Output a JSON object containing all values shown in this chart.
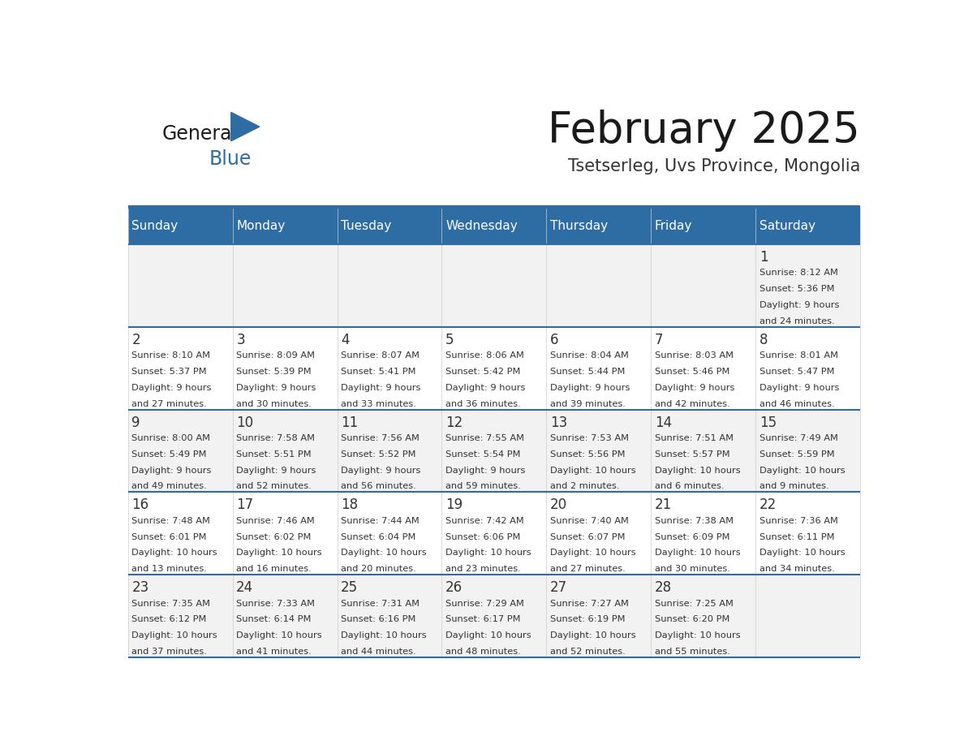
{
  "title": "February 2025",
  "subtitle": "Tsetserleg, Uvs Province, Mongolia",
  "days_of_week": [
    "Sunday",
    "Monday",
    "Tuesday",
    "Wednesday",
    "Thursday",
    "Friday",
    "Saturday"
  ],
  "header_bg": "#2e6da4",
  "header_text": "#ffffff",
  "cell_bg_light": "#f2f2f2",
  "cell_bg_white": "#ffffff",
  "line_color": "#2e6da4",
  "text_color": "#333333",
  "title_color": "#1a1a1a",
  "subtitle_color": "#333333",
  "logo_general_color": "#1a1a1a",
  "logo_blue_color": "#2e6da4",
  "days": [
    {
      "day": 1,
      "col": 6,
      "row": 0,
      "sunrise": "8:12 AM",
      "sunset": "5:36 PM",
      "daylight_hours": 9,
      "daylight_minutes": 24
    },
    {
      "day": 2,
      "col": 0,
      "row": 1,
      "sunrise": "8:10 AM",
      "sunset": "5:37 PM",
      "daylight_hours": 9,
      "daylight_minutes": 27
    },
    {
      "day": 3,
      "col": 1,
      "row": 1,
      "sunrise": "8:09 AM",
      "sunset": "5:39 PM",
      "daylight_hours": 9,
      "daylight_minutes": 30
    },
    {
      "day": 4,
      "col": 2,
      "row": 1,
      "sunrise": "8:07 AM",
      "sunset": "5:41 PM",
      "daylight_hours": 9,
      "daylight_minutes": 33
    },
    {
      "day": 5,
      "col": 3,
      "row": 1,
      "sunrise": "8:06 AM",
      "sunset": "5:42 PM",
      "daylight_hours": 9,
      "daylight_minutes": 36
    },
    {
      "day": 6,
      "col": 4,
      "row": 1,
      "sunrise": "8:04 AM",
      "sunset": "5:44 PM",
      "daylight_hours": 9,
      "daylight_minutes": 39
    },
    {
      "day": 7,
      "col": 5,
      "row": 1,
      "sunrise": "8:03 AM",
      "sunset": "5:46 PM",
      "daylight_hours": 9,
      "daylight_minutes": 42
    },
    {
      "day": 8,
      "col": 6,
      "row": 1,
      "sunrise": "8:01 AM",
      "sunset": "5:47 PM",
      "daylight_hours": 9,
      "daylight_minutes": 46
    },
    {
      "day": 9,
      "col": 0,
      "row": 2,
      "sunrise": "8:00 AM",
      "sunset": "5:49 PM",
      "daylight_hours": 9,
      "daylight_minutes": 49
    },
    {
      "day": 10,
      "col": 1,
      "row": 2,
      "sunrise": "7:58 AM",
      "sunset": "5:51 PM",
      "daylight_hours": 9,
      "daylight_minutes": 52
    },
    {
      "day": 11,
      "col": 2,
      "row": 2,
      "sunrise": "7:56 AM",
      "sunset": "5:52 PM",
      "daylight_hours": 9,
      "daylight_minutes": 56
    },
    {
      "day": 12,
      "col": 3,
      "row": 2,
      "sunrise": "7:55 AM",
      "sunset": "5:54 PM",
      "daylight_hours": 9,
      "daylight_minutes": 59
    },
    {
      "day": 13,
      "col": 4,
      "row": 2,
      "sunrise": "7:53 AM",
      "sunset": "5:56 PM",
      "daylight_hours": 10,
      "daylight_minutes": 2
    },
    {
      "day": 14,
      "col": 5,
      "row": 2,
      "sunrise": "7:51 AM",
      "sunset": "5:57 PM",
      "daylight_hours": 10,
      "daylight_minutes": 6
    },
    {
      "day": 15,
      "col": 6,
      "row": 2,
      "sunrise": "7:49 AM",
      "sunset": "5:59 PM",
      "daylight_hours": 10,
      "daylight_minutes": 9
    },
    {
      "day": 16,
      "col": 0,
      "row": 3,
      "sunrise": "7:48 AM",
      "sunset": "6:01 PM",
      "daylight_hours": 10,
      "daylight_minutes": 13
    },
    {
      "day": 17,
      "col": 1,
      "row": 3,
      "sunrise": "7:46 AM",
      "sunset": "6:02 PM",
      "daylight_hours": 10,
      "daylight_minutes": 16
    },
    {
      "day": 18,
      "col": 2,
      "row": 3,
      "sunrise": "7:44 AM",
      "sunset": "6:04 PM",
      "daylight_hours": 10,
      "daylight_minutes": 20
    },
    {
      "day": 19,
      "col": 3,
      "row": 3,
      "sunrise": "7:42 AM",
      "sunset": "6:06 PM",
      "daylight_hours": 10,
      "daylight_minutes": 23
    },
    {
      "day": 20,
      "col": 4,
      "row": 3,
      "sunrise": "7:40 AM",
      "sunset": "6:07 PM",
      "daylight_hours": 10,
      "daylight_minutes": 27
    },
    {
      "day": 21,
      "col": 5,
      "row": 3,
      "sunrise": "7:38 AM",
      "sunset": "6:09 PM",
      "daylight_hours": 10,
      "daylight_minutes": 30
    },
    {
      "day": 22,
      "col": 6,
      "row": 3,
      "sunrise": "7:36 AM",
      "sunset": "6:11 PM",
      "daylight_hours": 10,
      "daylight_minutes": 34
    },
    {
      "day": 23,
      "col": 0,
      "row": 4,
      "sunrise": "7:35 AM",
      "sunset": "6:12 PM",
      "daylight_hours": 10,
      "daylight_minutes": 37
    },
    {
      "day": 24,
      "col": 1,
      "row": 4,
      "sunrise": "7:33 AM",
      "sunset": "6:14 PM",
      "daylight_hours": 10,
      "daylight_minutes": 41
    },
    {
      "day": 25,
      "col": 2,
      "row": 4,
      "sunrise": "7:31 AM",
      "sunset": "6:16 PM",
      "daylight_hours": 10,
      "daylight_minutes": 44
    },
    {
      "day": 26,
      "col": 3,
      "row": 4,
      "sunrise": "7:29 AM",
      "sunset": "6:17 PM",
      "daylight_hours": 10,
      "daylight_minutes": 48
    },
    {
      "day": 27,
      "col": 4,
      "row": 4,
      "sunrise": "7:27 AM",
      "sunset": "6:19 PM",
      "daylight_hours": 10,
      "daylight_minutes": 52
    },
    {
      "day": 28,
      "col": 5,
      "row": 4,
      "sunrise": "7:25 AM",
      "sunset": "6:20 PM",
      "daylight_hours": 10,
      "daylight_minutes": 55
    }
  ],
  "num_rows": 5,
  "num_cols": 7
}
